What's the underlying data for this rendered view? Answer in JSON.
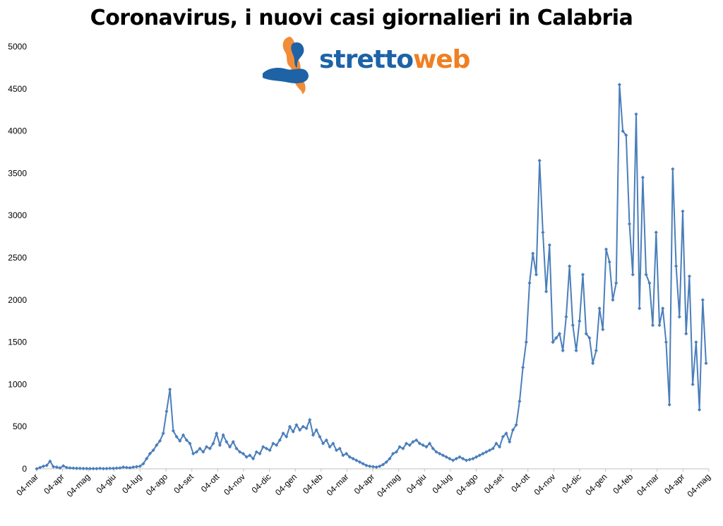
{
  "chart_data": {
    "type": "line",
    "title": "Coronavirus, i nuovi casi giornalieri in Calabria",
    "xlabel": "",
    "ylabel": "",
    "ylim": [
      0,
      5000
    ],
    "yticks": [
      0,
      500,
      1000,
      1500,
      2000,
      2500,
      3000,
      3500,
      4000,
      4500,
      5000
    ],
    "x_tick_labels": [
      "04-mar",
      "04-apr",
      "04-mag",
      "04-giu",
      "04-lug",
      "04-ago",
      "04-set",
      "04-ott",
      "04-nov",
      "04-dic",
      "04-gen",
      "04-feb",
      "04-mar",
      "04-apr",
      "04-mag",
      "04-giu",
      "04-lug",
      "04-ago",
      "04-set",
      "04-ott",
      "04-nov",
      "04-dic",
      "04-gen",
      "04-feb",
      "04-mar",
      "04-apr",
      "04-mag"
    ],
    "grid": false,
    "legend": "none",
    "series_color": "#4a7ebb",
    "series": [
      {
        "values": [
          0,
          15,
          30,
          40,
          90,
          25,
          20,
          10,
          35,
          15,
          10,
          8,
          5,
          5,
          3,
          3,
          2,
          2,
          2,
          5,
          2,
          3,
          5,
          5,
          8,
          10,
          20,
          15,
          12,
          20,
          25,
          30,
          60,
          120,
          180,
          220,
          280,
          330,
          420,
          680,
          940,
          450,
          380,
          330,
          400,
          340,
          300,
          180,
          200,
          240,
          200,
          260,
          240,
          300,
          420,
          280,
          400,
          320,
          260,
          320,
          240,
          200,
          180,
          140,
          160,
          120,
          200,
          180,
          260,
          240,
          220,
          300,
          280,
          340,
          420,
          380,
          500,
          440,
          520,
          460,
          500,
          480,
          580,
          400,
          460,
          380,
          300,
          340,
          260,
          300,
          220,
          240,
          160,
          180,
          140,
          120,
          100,
          80,
          60,
          40,
          30,
          25,
          20,
          30,
          50,
          80,
          120,
          180,
          200,
          260,
          240,
          300,
          280,
          320,
          340,
          300,
          280,
          260,
          300,
          240,
          200,
          180,
          160,
          140,
          120,
          100,
          120,
          140,
          120,
          100,
          110,
          120,
          140,
          160,
          180,
          200,
          220,
          240,
          300,
          260,
          380,
          420,
          320,
          460,
          520,
          800,
          1200,
          1500,
          2200,
          2550,
          2300,
          3650,
          2800,
          2100,
          2650,
          1500,
          1550,
          1600,
          1400,
          1800,
          2400,
          1700,
          1400,
          1750,
          2300,
          1600,
          1550,
          1250,
          1400,
          1900,
          1650,
          2600,
          2450,
          2000,
          2200,
          4550,
          4000,
          3950,
          2900,
          2300,
          4200,
          1900,
          3450,
          2300,
          2200,
          1700,
          2800,
          1700,
          1900,
          1500,
          760,
          3550,
          2400,
          1800,
          3050,
          1600,
          2280,
          1000,
          1500,
          700,
          2000,
          1250
        ]
      }
    ]
  },
  "logo": {
    "text_part1": "stretto",
    "text_part2": "web"
  }
}
